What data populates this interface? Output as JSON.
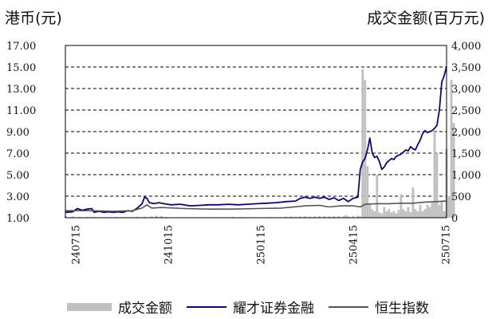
{
  "chart_data": {
    "type": "bar+line",
    "left_axis_unit": "港币(元)",
    "right_axis_unit": "成交金额(百万元)",
    "x_tick_labels": [
      "240715",
      "241015",
      "250115",
      "250415",
      "250715"
    ],
    "y_left": {
      "ticks": [
        "1.00",
        "3.00",
        "5.00",
        "7.00",
        "9.00",
        "11.00",
        "13.00",
        "15.00",
        "17.00"
      ],
      "min": 1,
      "max": 17
    },
    "y_right": {
      "ticks": [
        "0",
        "500",
        "1,000",
        "1,500",
        "2,000",
        "2,500",
        "3,000",
        "3,500",
        "4,000"
      ],
      "min": 0,
      "max": 4000
    },
    "grid": "dashed horizontal",
    "legend_position": "bottom",
    "colors": {
      "volume": "#c0c0c0",
      "stock": "#0a0a6e",
      "index": "#555555"
    },
    "series": [
      {
        "name": "成交金额",
        "type": "bar",
        "axis": "right",
        "points": [
          [
            0,
            40
          ],
          [
            3,
            30
          ],
          [
            6,
            20
          ],
          [
            9,
            20
          ],
          [
            12,
            15
          ],
          [
            15,
            10
          ],
          [
            18,
            10
          ],
          [
            21,
            15
          ],
          [
            24,
            10
          ],
          [
            27,
            10
          ],
          [
            30,
            20
          ],
          [
            33,
            25
          ],
          [
            36,
            35
          ],
          [
            38,
            50
          ],
          [
            40,
            40
          ],
          [
            42,
            20
          ],
          [
            44,
            10
          ],
          [
            46,
            10
          ],
          [
            50,
            10
          ],
          [
            54,
            10
          ],
          [
            58,
            10
          ],
          [
            62,
            10
          ],
          [
            66,
            10
          ],
          [
            70,
            20
          ],
          [
            74,
            15
          ],
          [
            78,
            10
          ],
          [
            82,
            10
          ],
          [
            86,
            15
          ],
          [
            89,
            10
          ],
          [
            92,
            25
          ],
          [
            94,
            30
          ],
          [
            96,
            20
          ],
          [
            98,
            30
          ],
          [
            100,
            35
          ],
          [
            102,
            25
          ],
          [
            104,
            30
          ],
          [
            106,
            40
          ],
          [
            108,
            35
          ],
          [
            110,
            30
          ],
          [
            112,
            35
          ],
          [
            114,
            40
          ],
          [
            116,
            30
          ],
          [
            117,
            60
          ],
          [
            118,
            30
          ],
          [
            120,
            40
          ],
          [
            122,
            50
          ],
          [
            123,
            30
          ],
          [
            124,
            3450
          ],
          [
            125,
            3200
          ],
          [
            126,
            1200
          ],
          [
            127,
            300
          ],
          [
            128,
            200
          ],
          [
            129,
            150
          ],
          [
            130,
            1000
          ],
          [
            131,
            120
          ],
          [
            132,
            100
          ],
          [
            133,
            250
          ],
          [
            134,
            150
          ],
          [
            135,
            200
          ],
          [
            136,
            120
          ],
          [
            137,
            150
          ],
          [
            138,
            100
          ],
          [
            139,
            180
          ],
          [
            140,
            550
          ],
          [
            141,
            200
          ],
          [
            142,
            150
          ],
          [
            143,
            250
          ],
          [
            144,
            130
          ],
          [
            145,
            700
          ],
          [
            146,
            200
          ],
          [
            147,
            150
          ],
          [
            148,
            300
          ],
          [
            149,
            150
          ],
          [
            150,
            200
          ],
          [
            151,
            300
          ],
          [
            152,
            250
          ],
          [
            153,
            350
          ],
          [
            154,
            2000
          ],
          [
            155,
            1500
          ],
          [
            156,
            300
          ],
          [
            157,
            400
          ],
          [
            158,
            150
          ],
          [
            159,
            1600
          ],
          [
            160,
            500
          ],
          [
            161,
            3200
          ],
          [
            162,
            2200
          ]
        ]
      },
      {
        "name": "耀才证券金融",
        "type": "line",
        "axis": "left",
        "points": [
          [
            0,
            1.5
          ],
          [
            3,
            1.55
          ],
          [
            5,
            1.85
          ],
          [
            7,
            1.7
          ],
          [
            9,
            1.8
          ],
          [
            11,
            1.85
          ],
          [
            12,
            1.5
          ],
          [
            14,
            1.6
          ],
          [
            16,
            1.5
          ],
          [
            18,
            1.55
          ],
          [
            20,
            1.5
          ],
          [
            22,
            1.55
          ],
          [
            24,
            1.5
          ],
          [
            26,
            1.65
          ],
          [
            28,
            1.6
          ],
          [
            30,
            1.9
          ],
          [
            32,
            2.3
          ],
          [
            33,
            2.9
          ],
          [
            34,
            2.8
          ],
          [
            35,
            2.4
          ],
          [
            37,
            2.3
          ],
          [
            39,
            2.4
          ],
          [
            41,
            2.3
          ],
          [
            44,
            2.2
          ],
          [
            48,
            2.25
          ],
          [
            52,
            2.1
          ],
          [
            56,
            2.15
          ],
          [
            60,
            2.2
          ],
          [
            64,
            2.2
          ],
          [
            68,
            2.25
          ],
          [
            72,
            2.2
          ],
          [
            76,
            2.25
          ],
          [
            80,
            2.3
          ],
          [
            84,
            2.35
          ],
          [
            88,
            2.4
          ],
          [
            92,
            2.5
          ],
          [
            96,
            2.55
          ],
          [
            98,
            2.8
          ],
          [
            100,
            2.9
          ],
          [
            102,
            2.8
          ],
          [
            104,
            2.9
          ],
          [
            106,
            2.8
          ],
          [
            108,
            2.9
          ],
          [
            110,
            2.7
          ],
          [
            112,
            2.85
          ],
          [
            114,
            2.6
          ],
          [
            116,
            2.8
          ],
          [
            118,
            2.5
          ],
          [
            120,
            2.8
          ],
          [
            122,
            2.9
          ],
          [
            123,
            5.5
          ],
          [
            124,
            6.2
          ],
          [
            125,
            6.5
          ],
          [
            126,
            7.3
          ],
          [
            127,
            8.4
          ],
          [
            128,
            7.0
          ],
          [
            129,
            6.6
          ],
          [
            130,
            6.7
          ],
          [
            131,
            6.2
          ],
          [
            132,
            5.5
          ],
          [
            133,
            5.7
          ],
          [
            134,
            6.1
          ],
          [
            135,
            6.3
          ],
          [
            136,
            6.5
          ],
          [
            137,
            6.4
          ],
          [
            138,
            6.7
          ],
          [
            139,
            6.8
          ],
          [
            140,
            6.9
          ],
          [
            141,
            7.1
          ],
          [
            142,
            7.3
          ],
          [
            143,
            7.2
          ],
          [
            144,
            7.6
          ],
          [
            145,
            7.4
          ],
          [
            146,
            7.3
          ],
          [
            147,
            7.8
          ],
          [
            148,
            8.2
          ],
          [
            149,
            8.8
          ],
          [
            150,
            9.1
          ],
          [
            151,
            8.9
          ],
          [
            152,
            9.0
          ],
          [
            153,
            9.1
          ],
          [
            154,
            9.3
          ],
          [
            155,
            9.6
          ],
          [
            156,
            11.0
          ],
          [
            157,
            13.6
          ],
          [
            158,
            14.2
          ],
          [
            159,
            15.0
          ]
        ]
      },
      {
        "name": "恒生指数",
        "type": "line",
        "axis": "left",
        "points": [
          [
            0,
            1.65
          ],
          [
            10,
            1.65
          ],
          [
            20,
            1.6
          ],
          [
            28,
            1.65
          ],
          [
            32,
            1.9
          ],
          [
            34,
            2.2
          ],
          [
            36,
            1.9
          ],
          [
            40,
            1.95
          ],
          [
            50,
            1.85
          ],
          [
            60,
            1.8
          ],
          [
            70,
            1.8
          ],
          [
            80,
            1.85
          ],
          [
            90,
            1.9
          ],
          [
            100,
            2.1
          ],
          [
            106,
            2.15
          ],
          [
            110,
            2.0
          ],
          [
            115,
            2.1
          ],
          [
            120,
            2.1
          ],
          [
            123,
            2.0
          ],
          [
            125,
            2.25
          ],
          [
            130,
            2.3
          ],
          [
            135,
            2.3
          ],
          [
            140,
            2.35
          ],
          [
            145,
            2.35
          ],
          [
            150,
            2.45
          ],
          [
            155,
            2.5
          ],
          [
            159,
            2.55
          ]
        ]
      }
    ]
  },
  "legend": [
    {
      "label": "成交金额",
      "kind": "bar",
      "color": "#c0c0c0"
    },
    {
      "label": "耀才证券金融",
      "kind": "line",
      "color": "#0a0a6e"
    },
    {
      "label": "恒生指数",
      "kind": "line",
      "color": "#555555"
    }
  ]
}
